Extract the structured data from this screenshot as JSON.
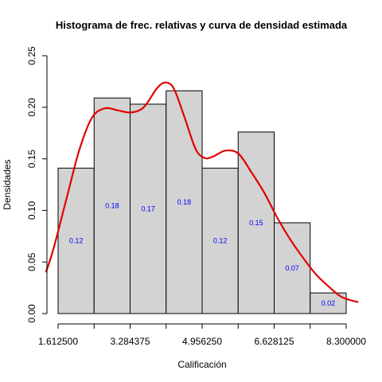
{
  "chart_data": {
    "type": "bar",
    "title": "Histograma de frec. relativas y curva de densidad estimada",
    "xlabel": "Calificación",
    "ylabel": "Densidades",
    "ylim": [
      0,
      0.25
    ],
    "xlim": [
      1.6125,
      8.3
    ],
    "x_ticks": [
      1.6125,
      2.448594,
      3.284375,
      4.120313,
      4.95625,
      5.792188,
      6.628125,
      7.464063,
      8.3
    ],
    "x_tick_labels": [
      "1.612500",
      "3.284375",
      "4.956250",
      "6.628125",
      "8.300000"
    ],
    "x_tick_label_values": [
      1.6125,
      3.284375,
      4.95625,
      6.628125,
      8.3
    ],
    "y_ticks": [
      0,
      0.05,
      0.1,
      0.15,
      0.2,
      0.25
    ],
    "y_tick_labels": [
      "0.00",
      "0.05",
      "0.10",
      "0.15",
      "0.20",
      "0.25"
    ],
    "bins": [
      {
        "from": 1.6125,
        "to": 2.448594,
        "density": 0.141,
        "label": "0.12"
      },
      {
        "from": 2.448594,
        "to": 3.284375,
        "density": 0.209,
        "label": "0.18"
      },
      {
        "from": 3.284375,
        "to": 4.120313,
        "density": 0.203,
        "label": "0.17"
      },
      {
        "from": 4.120313,
        "to": 4.95625,
        "density": 0.216,
        "label": "0.18"
      },
      {
        "from": 4.95625,
        "to": 5.792188,
        "density": 0.141,
        "label": "0.12"
      },
      {
        "from": 5.792188,
        "to": 6.628125,
        "density": 0.176,
        "label": "0.15"
      },
      {
        "from": 6.628125,
        "to": 7.464063,
        "density": 0.088,
        "label": "0.07"
      },
      {
        "from": 7.464063,
        "to": 8.3,
        "density": 0.02,
        "label": "0.02"
      }
    ],
    "density_curve": {
      "color": "#e00000",
      "x": [
        1.33,
        1.5,
        1.8,
        2.1,
        2.4,
        2.7,
        3.0,
        3.3,
        3.6,
        3.9,
        4.1,
        4.3,
        4.55,
        4.8,
        5.0,
        5.2,
        5.5,
        5.8,
        6.1,
        6.4,
        6.7,
        7.0,
        7.3,
        7.6,
        7.9,
        8.2,
        8.58
      ],
      "y": [
        0.04,
        0.062,
        0.11,
        0.158,
        0.19,
        0.199,
        0.197,
        0.195,
        0.2,
        0.218,
        0.224,
        0.218,
        0.19,
        0.16,
        0.151,
        0.152,
        0.158,
        0.155,
        0.137,
        0.117,
        0.093,
        0.072,
        0.054,
        0.038,
        0.026,
        0.016,
        0.011
      ]
    }
  }
}
